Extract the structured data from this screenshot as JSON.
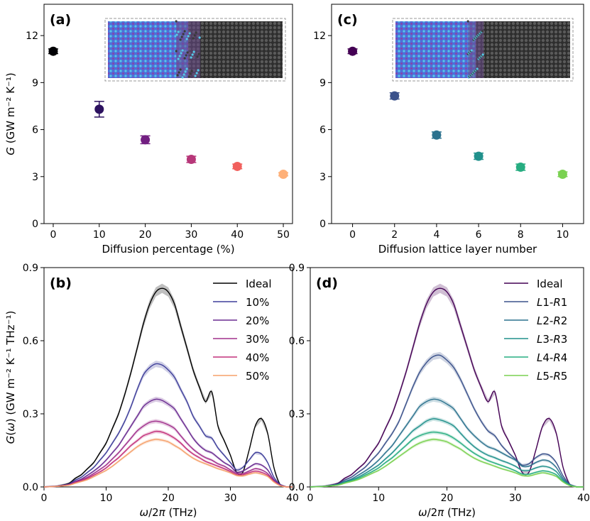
{
  "chart_data": [
    {
      "panel": "(a)",
      "type": "scatter",
      "xlabel": "Diffusion percentage (%)",
      "ylabel": "G (GW m⁻² K⁻¹)",
      "xlim": [
        -2,
        52
      ],
      "ylim": [
        0,
        14
      ],
      "xticks": [
        0,
        10,
        20,
        30,
        40,
        50
      ],
      "yticks": [
        0,
        3,
        6,
        9,
        12
      ],
      "has_inset": true,
      "points": [
        {
          "x": 0,
          "y": 11.0,
          "err": 0.15,
          "color": "#000004"
        },
        {
          "x": 10,
          "y": 7.3,
          "err": 0.5,
          "color": "#2c115f"
        },
        {
          "x": 20,
          "y": 5.35,
          "err": 0.25,
          "color": "#721f81"
        },
        {
          "x": 30,
          "y": 4.1,
          "err": 0.2,
          "color": "#b73779"
        },
        {
          "x": 40,
          "y": 3.65,
          "err": 0.15,
          "color": "#f1605d"
        },
        {
          "x": 50,
          "y": 3.15,
          "err": 0.1,
          "color": "#feb078"
        }
      ]
    },
    {
      "panel": "(c)",
      "type": "scatter",
      "xlabel": "Diffusion lattice layer number",
      "ylabel": "",
      "xlim": [
        -1,
        11
      ],
      "ylim": [
        0,
        14
      ],
      "xticks": [
        0,
        2,
        4,
        6,
        8,
        10
      ],
      "yticks": [
        0,
        3,
        6,
        9,
        12
      ],
      "has_inset": true,
      "points": [
        {
          "x": 0,
          "y": 11.0,
          "err": 0.15,
          "color": "#440154"
        },
        {
          "x": 2,
          "y": 8.15,
          "err": 0.2,
          "color": "#3b528b"
        },
        {
          "x": 4,
          "y": 5.65,
          "err": 0.2,
          "color": "#2c728e"
        },
        {
          "x": 6,
          "y": 4.3,
          "err": 0.2,
          "color": "#21918c"
        },
        {
          "x": 8,
          "y": 3.6,
          "err": 0.2,
          "color": "#27ad81"
        },
        {
          "x": 10,
          "y": 3.15,
          "err": 0.15,
          "color": "#7ad151"
        }
      ]
    },
    {
      "panel": "(b)",
      "type": "line",
      "xlabel": "ω/2π (THz)",
      "ylabel": "G(ω) (GW m⁻² K⁻¹ THz⁻¹)",
      "xlim": [
        0,
        40
      ],
      "ylim": [
        0,
        0.9
      ],
      "xticks": [
        0,
        10,
        20,
        30,
        40
      ],
      "yticks": [
        0.0,
        0.3,
        0.6,
        0.9
      ],
      "legend_position": "top-right",
      "x": [
        0,
        2,
        4,
        5,
        6,
        7,
        8,
        9,
        10,
        11,
        12,
        13,
        14,
        15,
        16,
        17,
        18,
        19,
        20,
        21,
        22,
        23,
        24,
        25,
        26,
        27,
        28,
        29,
        30,
        31,
        32,
        33,
        34,
        35,
        36,
        37,
        38,
        39,
        40
      ],
      "series": [
        {
          "name": "Ideal",
          "color": "#000000",
          "values": [
            0,
            0.003,
            0.015,
            0.035,
            0.05,
            0.075,
            0.1,
            0.14,
            0.18,
            0.24,
            0.3,
            0.38,
            0.47,
            0.57,
            0.67,
            0.75,
            0.8,
            0.815,
            0.8,
            0.75,
            0.66,
            0.57,
            0.48,
            0.41,
            0.35,
            0.39,
            0.25,
            0.19,
            0.13,
            0.06,
            0.06,
            0.15,
            0.25,
            0.28,
            0.22,
            0.08,
            0.01,
            0.0,
            0.0
          ]
        },
        {
          "name": "10%",
          "color": "#3f3f9a",
          "values": [
            0,
            0.003,
            0.012,
            0.028,
            0.04,
            0.06,
            0.08,
            0.11,
            0.14,
            0.18,
            0.22,
            0.27,
            0.33,
            0.4,
            0.46,
            0.49,
            0.505,
            0.5,
            0.48,
            0.45,
            0.4,
            0.35,
            0.29,
            0.25,
            0.21,
            0.2,
            0.16,
            0.13,
            0.1,
            0.07,
            0.08,
            0.11,
            0.14,
            0.135,
            0.1,
            0.04,
            0.01,
            0.0,
            0.0
          ]
        },
        {
          "name": "20%",
          "color": "#6a2c91",
          "values": [
            0,
            0.002,
            0.01,
            0.022,
            0.032,
            0.048,
            0.065,
            0.085,
            0.11,
            0.14,
            0.17,
            0.21,
            0.25,
            0.29,
            0.33,
            0.35,
            0.36,
            0.355,
            0.34,
            0.32,
            0.28,
            0.24,
            0.2,
            0.17,
            0.15,
            0.14,
            0.12,
            0.1,
            0.085,
            0.06,
            0.065,
            0.08,
            0.095,
            0.09,
            0.07,
            0.03,
            0.008,
            0.0,
            0.0
          ]
        },
        {
          "name": "30%",
          "color": "#a0308c",
          "values": [
            0,
            0.002,
            0.009,
            0.019,
            0.028,
            0.04,
            0.055,
            0.072,
            0.09,
            0.115,
            0.14,
            0.17,
            0.2,
            0.23,
            0.25,
            0.265,
            0.27,
            0.265,
            0.255,
            0.24,
            0.21,
            0.18,
            0.155,
            0.135,
            0.12,
            0.11,
            0.095,
            0.085,
            0.07,
            0.055,
            0.055,
            0.065,
            0.075,
            0.07,
            0.055,
            0.025,
            0.007,
            0.0,
            0.0
          ]
        },
        {
          "name": "40%",
          "color": "#c2307a",
          "values": [
            0,
            0.002,
            0.008,
            0.017,
            0.025,
            0.035,
            0.048,
            0.062,
            0.078,
            0.1,
            0.12,
            0.145,
            0.17,
            0.19,
            0.21,
            0.22,
            0.228,
            0.225,
            0.215,
            0.2,
            0.18,
            0.155,
            0.135,
            0.12,
            0.105,
            0.095,
            0.085,
            0.075,
            0.063,
            0.05,
            0.05,
            0.058,
            0.065,
            0.06,
            0.048,
            0.022,
            0.006,
            0.0,
            0.0
          ]
        },
        {
          "name": "50%",
          "color": "#f5a06a",
          "values": [
            0,
            0.002,
            0.007,
            0.015,
            0.022,
            0.03,
            0.042,
            0.055,
            0.068,
            0.085,
            0.105,
            0.125,
            0.145,
            0.165,
            0.18,
            0.19,
            0.195,
            0.192,
            0.185,
            0.17,
            0.155,
            0.135,
            0.118,
            0.105,
            0.095,
            0.085,
            0.075,
            0.067,
            0.058,
            0.047,
            0.045,
            0.052,
            0.058,
            0.053,
            0.043,
            0.02,
            0.005,
            0.0,
            0.0
          ]
        }
      ]
    },
    {
      "panel": "(d)",
      "type": "line",
      "xlabel": "ω/2π (THz)",
      "ylabel": "",
      "xlim": [
        0,
        40
      ],
      "ylim": [
        0,
        0.9
      ],
      "xticks": [
        0,
        10,
        20,
        30,
        40
      ],
      "yticks": [
        0.0,
        0.3,
        0.6,
        0.9
      ],
      "legend_position": "top-right",
      "x": [
        0,
        2,
        4,
        5,
        6,
        7,
        8,
        9,
        10,
        11,
        12,
        13,
        14,
        15,
        16,
        17,
        18,
        19,
        20,
        21,
        22,
        23,
        24,
        25,
        26,
        27,
        28,
        29,
        30,
        31,
        32,
        33,
        34,
        35,
        36,
        37,
        38,
        39,
        40
      ],
      "series": [
        {
          "name": "Ideal",
          "color": "#440154",
          "values": [
            0,
            0.003,
            0.015,
            0.035,
            0.05,
            0.075,
            0.1,
            0.14,
            0.18,
            0.24,
            0.3,
            0.38,
            0.47,
            0.57,
            0.67,
            0.75,
            0.8,
            0.815,
            0.8,
            0.75,
            0.66,
            0.57,
            0.48,
            0.41,
            0.35,
            0.39,
            0.25,
            0.19,
            0.13,
            0.06,
            0.06,
            0.15,
            0.25,
            0.28,
            0.22,
            0.08,
            0.01,
            0.0,
            0.0
          ]
        },
        {
          "name": "L1-R1",
          "color": "#3b528b",
          "values": [
            0,
            0.003,
            0.012,
            0.028,
            0.04,
            0.06,
            0.08,
            0.11,
            0.14,
            0.18,
            0.22,
            0.27,
            0.34,
            0.41,
            0.47,
            0.51,
            0.535,
            0.54,
            0.52,
            0.49,
            0.44,
            0.38,
            0.32,
            0.27,
            0.23,
            0.21,
            0.17,
            0.14,
            0.115,
            0.09,
            0.095,
            0.12,
            0.135,
            0.13,
            0.1,
            0.045,
            0.01,
            0.0,
            0.0
          ]
        },
        {
          "name": "L2-R2",
          "color": "#2c728e",
          "values": [
            0,
            0.002,
            0.01,
            0.022,
            0.032,
            0.048,
            0.065,
            0.085,
            0.11,
            0.14,
            0.17,
            0.21,
            0.25,
            0.29,
            0.33,
            0.35,
            0.36,
            0.355,
            0.34,
            0.32,
            0.28,
            0.24,
            0.21,
            0.185,
            0.165,
            0.155,
            0.14,
            0.125,
            0.11,
            0.085,
            0.085,
            0.1,
            0.11,
            0.105,
            0.08,
            0.035,
            0.009,
            0.0,
            0.0
          ]
        },
        {
          "name": "L3-R3",
          "color": "#21918c",
          "values": [
            0,
            0.002,
            0.009,
            0.019,
            0.028,
            0.04,
            0.055,
            0.072,
            0.09,
            0.115,
            0.14,
            0.17,
            0.2,
            0.23,
            0.25,
            0.27,
            0.28,
            0.275,
            0.265,
            0.25,
            0.22,
            0.19,
            0.165,
            0.145,
            0.13,
            0.12,
            0.108,
            0.098,
            0.085,
            0.068,
            0.068,
            0.078,
            0.085,
            0.08,
            0.063,
            0.028,
            0.007,
            0.0,
            0.0
          ]
        },
        {
          "name": "L4-R4",
          "color": "#27ad81",
          "values": [
            0,
            0.002,
            0.008,
            0.017,
            0.025,
            0.035,
            0.048,
            0.062,
            0.078,
            0.1,
            0.12,
            0.145,
            0.17,
            0.195,
            0.21,
            0.22,
            0.225,
            0.222,
            0.215,
            0.2,
            0.18,
            0.158,
            0.138,
            0.122,
            0.108,
            0.098,
            0.088,
            0.078,
            0.066,
            0.053,
            0.052,
            0.06,
            0.066,
            0.062,
            0.05,
            0.022,
            0.006,
            0.0,
            0.0
          ]
        },
        {
          "name": "L5-R5",
          "color": "#7ad151",
          "values": [
            0,
            0.002,
            0.007,
            0.015,
            0.022,
            0.03,
            0.042,
            0.055,
            0.068,
            0.085,
            0.105,
            0.125,
            0.145,
            0.165,
            0.18,
            0.19,
            0.195,
            0.192,
            0.185,
            0.17,
            0.155,
            0.135,
            0.118,
            0.105,
            0.095,
            0.085,
            0.075,
            0.067,
            0.058,
            0.047,
            0.045,
            0.052,
            0.058,
            0.053,
            0.043,
            0.02,
            0.005,
            0.0,
            0.0
          ]
        }
      ]
    }
  ]
}
